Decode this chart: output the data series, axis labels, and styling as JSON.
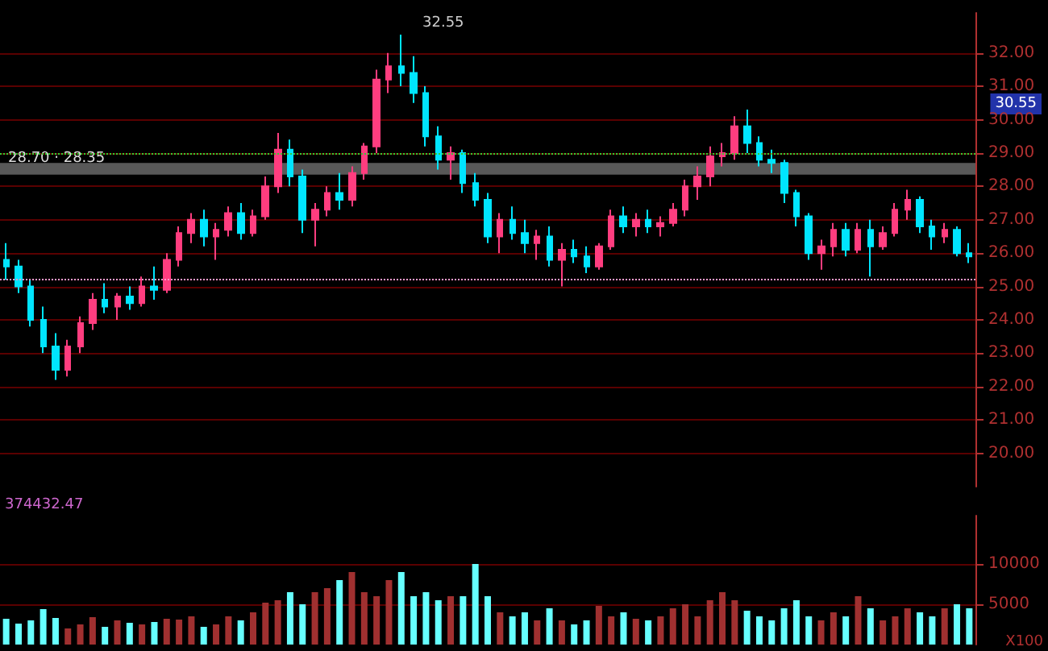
{
  "chart_data": [
    {
      "type": "candlestick",
      "categories": [
        null,
        null,
        null,
        null,
        null,
        null,
        null,
        null,
        null,
        null,
        null,
        null,
        null,
        null,
        null,
        null,
        null,
        null,
        null,
        null,
        null,
        null,
        null,
        null,
        null,
        null,
        null,
        null,
        null,
        null,
        null,
        null,
        null,
        null,
        null,
        null,
        null,
        null,
        null,
        null,
        null,
        null,
        null,
        null,
        null,
        null,
        null,
        null,
        null,
        null,
        null,
        null,
        null,
        null,
        null,
        null,
        null,
        null,
        null,
        null,
        null,
        null,
        null,
        null,
        null,
        null,
        null,
        null,
        null,
        null,
        null,
        null,
        null,
        null,
        null,
        null,
        null,
        null,
        null
      ],
      "ohlc": [
        [
          25.8,
          26.3,
          25.2,
          25.6
        ],
        [
          25.6,
          25.8,
          24.8,
          25.0
        ],
        [
          25.0,
          25.2,
          23.8,
          24.0
        ],
        [
          24.0,
          24.4,
          23.0,
          23.2
        ],
        [
          23.2,
          23.6,
          22.2,
          22.5
        ],
        [
          22.5,
          23.4,
          22.3,
          23.2
        ],
        [
          23.2,
          24.1,
          23.0,
          23.9
        ],
        [
          23.9,
          24.8,
          23.7,
          24.6
        ],
        [
          24.6,
          25.1,
          24.2,
          24.4
        ],
        [
          24.4,
          24.8,
          24.0,
          24.7
        ],
        [
          24.7,
          25.0,
          24.3,
          24.5
        ],
        [
          24.5,
          25.3,
          24.4,
          25.0
        ],
        [
          25.0,
          25.6,
          24.6,
          24.9
        ],
        [
          24.9,
          26.0,
          24.8,
          25.8
        ],
        [
          25.8,
          26.8,
          25.6,
          26.6
        ],
        [
          26.6,
          27.2,
          26.3,
          27.0
        ],
        [
          27.0,
          27.3,
          26.2,
          26.5
        ],
        [
          26.5,
          26.9,
          25.8,
          26.7
        ],
        [
          26.7,
          27.4,
          26.5,
          27.2
        ],
        [
          27.2,
          27.5,
          26.4,
          26.6
        ],
        [
          26.6,
          27.3,
          26.5,
          27.1
        ],
        [
          27.1,
          28.3,
          27.0,
          28.0
        ],
        [
          28.0,
          29.6,
          27.8,
          29.1
        ],
        [
          29.1,
          29.4,
          28.0,
          28.3
        ],
        [
          28.3,
          28.5,
          26.6,
          27.0
        ],
        [
          27.0,
          27.5,
          26.2,
          27.3
        ],
        [
          27.3,
          28.0,
          27.1,
          27.8
        ],
        [
          27.8,
          28.4,
          27.3,
          27.6
        ],
        [
          27.6,
          28.6,
          27.4,
          28.4
        ],
        [
          28.4,
          29.3,
          28.2,
          29.2
        ],
        [
          29.2,
          31.5,
          29.0,
          31.2
        ],
        [
          31.2,
          32.0,
          30.8,
          31.6
        ],
        [
          31.6,
          32.55,
          31.0,
          31.4
        ],
        [
          31.4,
          31.9,
          30.5,
          30.8
        ],
        [
          30.8,
          31.0,
          29.2,
          29.5
        ],
        [
          29.5,
          29.8,
          28.5,
          28.8
        ],
        [
          28.8,
          29.2,
          28.2,
          29.0
        ],
        [
          29.0,
          29.1,
          27.8,
          28.1
        ],
        [
          28.1,
          28.4,
          27.4,
          27.6
        ],
        [
          27.6,
          27.8,
          26.3,
          26.5
        ],
        [
          26.5,
          27.2,
          26.0,
          27.0
        ],
        [
          27.0,
          27.4,
          26.4,
          26.6
        ],
        [
          26.6,
          27.0,
          26.0,
          26.3
        ],
        [
          26.3,
          26.7,
          25.8,
          26.5
        ],
        [
          26.5,
          26.8,
          25.6,
          25.8
        ],
        [
          25.8,
          26.3,
          25.0,
          26.1
        ],
        [
          26.1,
          26.4,
          25.7,
          25.9
        ],
        [
          25.9,
          26.2,
          25.4,
          25.6
        ],
        [
          25.6,
          26.3,
          25.5,
          26.2
        ],
        [
          26.2,
          27.3,
          26.1,
          27.1
        ],
        [
          27.1,
          27.4,
          26.6,
          26.8
        ],
        [
          26.8,
          27.2,
          26.5,
          27.0
        ],
        [
          27.0,
          27.3,
          26.6,
          26.8
        ],
        [
          26.8,
          27.1,
          26.5,
          26.9
        ],
        [
          26.9,
          27.5,
          26.8,
          27.3
        ],
        [
          27.3,
          28.2,
          27.1,
          28.0
        ],
        [
          28.0,
          28.6,
          27.6,
          28.3
        ],
        [
          28.3,
          29.2,
          28.0,
          28.9
        ],
        [
          28.9,
          29.3,
          28.6,
          29.0
        ],
        [
          29.0,
          30.1,
          28.8,
          29.8
        ],
        [
          29.8,
          30.3,
          29.0,
          29.3
        ],
        [
          29.3,
          29.5,
          28.6,
          28.8
        ],
        [
          28.8,
          29.1,
          28.4,
          28.7
        ],
        [
          28.7,
          28.8,
          27.5,
          27.8
        ],
        [
          27.8,
          27.9,
          26.8,
          27.1
        ],
        [
          27.1,
          27.2,
          25.8,
          26.0
        ],
        [
          26.0,
          26.4,
          25.5,
          26.2
        ],
        [
          26.2,
          26.9,
          25.9,
          26.7
        ],
        [
          26.7,
          26.9,
          25.9,
          26.1
        ],
        [
          26.1,
          26.9,
          26.0,
          26.7
        ],
        [
          26.7,
          27.0,
          25.3,
          26.2
        ],
        [
          26.2,
          26.8,
          26.1,
          26.6
        ],
        [
          26.6,
          27.5,
          26.5,
          27.3
        ],
        [
          27.3,
          27.9,
          27.0,
          27.6
        ],
        [
          27.6,
          27.7,
          26.6,
          26.8
        ],
        [
          26.8,
          27.0,
          26.1,
          26.5
        ],
        [
          26.5,
          26.9,
          26.3,
          26.7
        ],
        [
          26.7,
          26.8,
          25.9,
          26.0
        ],
        [
          26.0,
          26.3,
          25.7,
          25.9
        ]
      ],
      "colors": [
        "#00e5ff",
        "#00e5ff",
        "#00e5ff",
        "#00e5ff",
        "#00e5ff",
        "#ff3d7f",
        "#ff3d7f",
        "#ff3d7f",
        "#00e5ff",
        "#ff3d7f",
        "#00e5ff",
        "#ff3d7f",
        "#00e5ff",
        "#ff3d7f",
        "#ff3d7f",
        "#ff3d7f",
        "#00e5ff",
        "#ff3d7f",
        "#ff3d7f",
        "#00e5ff",
        "#ff3d7f",
        "#ff3d7f",
        "#ff3d7f",
        "#00e5ff",
        "#00e5ff",
        "#ff3d7f",
        "#ff3d7f",
        "#00e5ff",
        "#ff3d7f",
        "#ff3d7f",
        "#ff3d7f",
        "#ff3d7f",
        "#00e5ff",
        "#00e5ff",
        "#00e5ff",
        "#00e5ff",
        "#ff3d7f",
        "#00e5ff",
        "#00e5ff",
        "#00e5ff",
        "#ff3d7f",
        "#00e5ff",
        "#00e5ff",
        "#ff3d7f",
        "#00e5ff",
        "#ff3d7f",
        "#00e5ff",
        "#00e5ff",
        "#ff3d7f",
        "#ff3d7f",
        "#00e5ff",
        "#ff3d7f",
        "#00e5ff",
        "#ff3d7f",
        "#ff3d7f",
        "#ff3d7f",
        "#ff3d7f",
        "#ff3d7f",
        "#ff3d7f",
        "#ff3d7f",
        "#00e5ff",
        "#00e5ff",
        "#00e5ff",
        "#00e5ff",
        "#00e5ff",
        "#00e5ff",
        "#ff3d7f",
        "#ff3d7f",
        "#00e5ff",
        "#ff3d7f",
        "#00e5ff",
        "#ff3d7f",
        "#ff3d7f",
        "#ff3d7f",
        "#00e5ff",
        "#00e5ff",
        "#ff3d7f",
        "#00e5ff",
        "#00e5ff"
      ],
      "ylim": [
        19,
        33.2
      ],
      "yticks": [
        {
          "value": 20,
          "label": "20.00"
        },
        {
          "value": 21,
          "label": "21.00"
        },
        {
          "value": 22,
          "label": "22.00"
        },
        {
          "value": 23,
          "label": "23.00"
        },
        {
          "value": 24,
          "label": "24.00"
        },
        {
          "value": 25,
          "label": "25.00"
        },
        {
          "value": 26,
          "label": "26.00"
        },
        {
          "value": 27,
          "label": "27.00"
        },
        {
          "value": 28,
          "label": "28.00"
        },
        {
          "value": 29,
          "label": "29.00"
        },
        {
          "value": 30,
          "label": "30.00"
        },
        {
          "value": 31,
          "label": "31.00"
        },
        {
          "value": 32,
          "label": "32.00"
        }
      ],
      "grid": "y",
      "tick_labels": "y",
      "ref_lines": [
        {
          "axis": "y",
          "value": 29.0,
          "color": "#33cc33",
          "line_style": "dotted"
        },
        {
          "axis": "y",
          "value": 25.2,
          "color": "#ff99cc",
          "line_style": "dotted"
        }
      ],
      "bands": [
        {
          "axis": "y",
          "from": 28.35,
          "to": 28.7,
          "label": "28.70 · 28.35",
          "color": "#a0a0a0"
        }
      ],
      "annotations": [
        "32.55",
        "30.55"
      ]
    },
    {
      "type": "bar",
      "categories": [
        null,
        null,
        null,
        null,
        null,
        null,
        null,
        null,
        null,
        null,
        null,
        null,
        null,
        null,
        null,
        null,
        null,
        null,
        null,
        null,
        null,
        null,
        null,
        null,
        null,
        null,
        null,
        null,
        null,
        null,
        null,
        null,
        null,
        null,
        null,
        null,
        null,
        null,
        null,
        null,
        null,
        null,
        null,
        null,
        null,
        null,
        null,
        null,
        null,
        null,
        null,
        null,
        null,
        null,
        null,
        null,
        null,
        null,
        null,
        null,
        null,
        null,
        null,
        null,
        null,
        null,
        null,
        null,
        null,
        null,
        null,
        null,
        null,
        null,
        null,
        null,
        null,
        null,
        null
      ],
      "values": [
        3200,
        2600,
        3000,
        4400,
        3300,
        2000,
        2500,
        3400,
        2200,
        3000,
        2700,
        2500,
        2800,
        3200,
        3100,
        3500,
        2200,
        2500,
        3500,
        3000,
        4000,
        5200,
        5500,
        6500,
        5000,
        6500,
        7000,
        8000,
        9000,
        6500,
        6000,
        8000,
        9000,
        6000,
        6500,
        5500,
        6000,
        6000,
        10000,
        6000,
        4000,
        3500,
        4000,
        3000,
        4500,
        3000,
        2500,
        3000,
        4800,
        3500,
        4000,
        3200,
        3000,
        3500,
        4500,
        5000,
        3500,
        5500,
        6500,
        5500,
        4200,
        3500,
        3000,
        4500,
        5500,
        3500,
        3000,
        4000,
        3500,
        6000,
        4500,
        3000,
        3500,
        4500,
        4000,
        3500,
        4500,
        5000,
        4500
      ],
      "colors": [
        "#66ffff",
        "#66ffff",
        "#66ffff",
        "#66ffff",
        "#66ffff",
        "#a03030",
        "#a03030",
        "#a03030",
        "#66ffff",
        "#a03030",
        "#66ffff",
        "#a03030",
        "#66ffff",
        "#a03030",
        "#a03030",
        "#a03030",
        "#66ffff",
        "#a03030",
        "#a03030",
        "#66ffff",
        "#a03030",
        "#a03030",
        "#a03030",
        "#66ffff",
        "#66ffff",
        "#a03030",
        "#a03030",
        "#66ffff",
        "#a03030",
        "#a03030",
        "#a03030",
        "#a03030",
        "#66ffff",
        "#66ffff",
        "#66ffff",
        "#66ffff",
        "#a03030",
        "#66ffff",
        "#66ffff",
        "#66ffff",
        "#a03030",
        "#66ffff",
        "#66ffff",
        "#a03030",
        "#66ffff",
        "#a03030",
        "#66ffff",
        "#66ffff",
        "#a03030",
        "#a03030",
        "#66ffff",
        "#a03030",
        "#66ffff",
        "#a03030",
        "#a03030",
        "#a03030",
        "#a03030",
        "#a03030",
        "#a03030",
        "#a03030",
        "#66ffff",
        "#66ffff",
        "#66ffff",
        "#66ffff",
        "#66ffff",
        "#66ffff",
        "#a03030",
        "#a03030",
        "#66ffff",
        "#a03030",
        "#66ffff",
        "#a03030",
        "#a03030",
        "#a03030",
        "#66ffff",
        "#66ffff",
        "#a03030",
        "#66ffff",
        "#66ffff"
      ],
      "ylim": [
        0,
        16000
      ],
      "yticks": [
        5000,
        10000
      ],
      "grid": "y",
      "tick_labels": "y",
      "annotations": [
        "374432.47",
        "X100"
      ]
    }
  ]
}
